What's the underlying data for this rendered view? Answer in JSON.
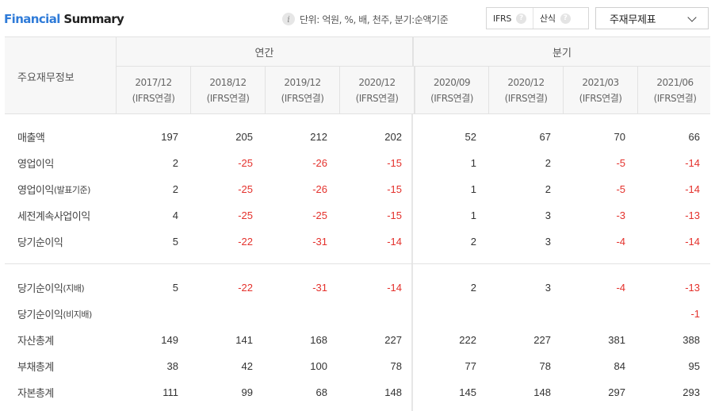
{
  "header": {
    "title_part1": "Financial",
    "title_part2": "Summary",
    "unit_text": "단위: 억원, %, 배, 천주, 분기:순액기준",
    "ifrs_label": "IFRS",
    "formula_label": "산식",
    "select_label": "주재무제표"
  },
  "table": {
    "main_label": "주요재무정보",
    "group_annual": "연간",
    "group_quarter": "분기",
    "periods": [
      {
        "date": "2017/12",
        "basis": "(IFRS연결)"
      },
      {
        "date": "2018/12",
        "basis": "(IFRS연결)"
      },
      {
        "date": "2019/12",
        "basis": "(IFRS연결)"
      },
      {
        "date": "2020/12",
        "basis": "(IFRS연결)"
      },
      {
        "date": "2020/09",
        "basis": "(IFRS연결)"
      },
      {
        "date": "2020/12",
        "basis": "(IFRS연결)"
      },
      {
        "date": "2021/03",
        "basis": "(IFRS연결)"
      },
      {
        "date": "2021/06",
        "basis": "(IFRS연결)"
      }
    ],
    "rows": [
      {
        "label": "매출액",
        "suffix": "",
        "values": [
          "197",
          "205",
          "212",
          "202",
          "52",
          "67",
          "70",
          "66"
        ]
      },
      {
        "label": "영업이익",
        "suffix": "",
        "values": [
          "2",
          "-25",
          "-26",
          "-15",
          "1",
          "2",
          "-5",
          "-14"
        ]
      },
      {
        "label": "영업이익",
        "suffix": "(발표기준)",
        "values": [
          "2",
          "-25",
          "-26",
          "-15",
          "1",
          "2",
          "-5",
          "-14"
        ]
      },
      {
        "label": "세전계속사업이익",
        "suffix": "",
        "values": [
          "4",
          "-25",
          "-25",
          "-15",
          "1",
          "3",
          "-3",
          "-13"
        ]
      },
      {
        "label": "당기순이익",
        "suffix": "",
        "values": [
          "5",
          "-22",
          "-31",
          "-14",
          "2",
          "3",
          "-4",
          "-14"
        ]
      },
      {
        "label": "당기순이익",
        "suffix": "(지배)",
        "values": [
          "5",
          "-22",
          "-31",
          "-14",
          "2",
          "3",
          "-4",
          "-13"
        ]
      },
      {
        "label": "당기순이익",
        "suffix": "(비지배)",
        "values": [
          "",
          "",
          "",
          "",
          "",
          "",
          "",
          "-1"
        ]
      },
      {
        "label": "자산총계",
        "suffix": "",
        "values": [
          "149",
          "141",
          "168",
          "227",
          "222",
          "227",
          "381",
          "388"
        ]
      },
      {
        "label": "부채총계",
        "suffix": "",
        "values": [
          "38",
          "42",
          "100",
          "78",
          "77",
          "78",
          "84",
          "95"
        ]
      },
      {
        "label": "자본총계",
        "suffix": "",
        "values": [
          "111",
          "99",
          "68",
          "148",
          "145",
          "148",
          "297",
          "293"
        ]
      }
    ]
  },
  "colors": {
    "title_accent": "#2f7bd8",
    "negative": "#e4312c",
    "header_bg": "#f7f7f7"
  }
}
